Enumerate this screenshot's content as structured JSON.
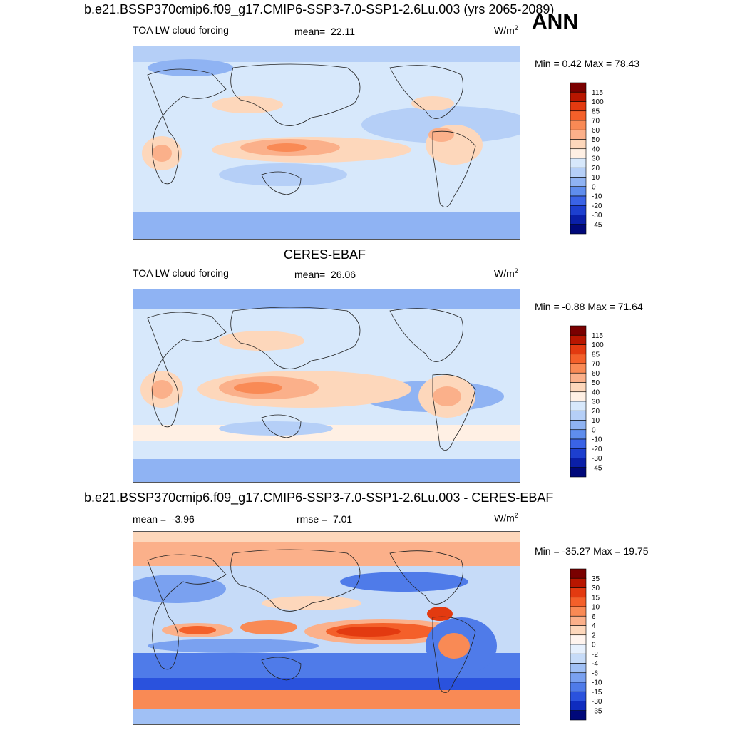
{
  "main_title": "b.e21.BSSP370cmip6.f09_g17.CMIP6-SSP3-7.0-SSP1-2.6Lu.003 (yrs 2065-2089)",
  "season": "ANN",
  "panels": [
    {
      "variable": "TOA LW cloud forcing",
      "stat_label": "mean=",
      "stat_value": "22.11",
      "units_base": "W/m",
      "units_exp": "2",
      "minmax": "Min =   0.42 Max =  78.43",
      "colorbar_labels": [
        "115",
        "100",
        "85",
        "70",
        "60",
        "50",
        "40",
        "30",
        "20",
        "10",
        "0",
        "-10",
        "-20",
        "-30",
        "-45"
      ]
    },
    {
      "subtitle": "CERES-EBAF",
      "variable": "TOA LW cloud forcing",
      "stat_label": "mean=",
      "stat_value": "26.06",
      "units_base": "W/m",
      "units_exp": "2",
      "minmax": "Min =  -0.88 Max =  71.64",
      "colorbar_labels": [
        "115",
        "100",
        "85",
        "70",
        "60",
        "50",
        "40",
        "30",
        "20",
        "10",
        "0",
        "-10",
        "-20",
        "-30",
        "-45"
      ]
    },
    {
      "subtitle": "b.e21.BSSP370cmip6.f09_g17.CMIP6-SSP3-7.0-SSP1-2.6Lu.003 - CERES-EBAF",
      "mean_label": "mean =",
      "mean_value": "-3.96",
      "rmse_label": "rmse =",
      "rmse_value": "7.01",
      "units_base": "W/m",
      "units_exp": "2",
      "minmax": "Min = -35.27 Max =  19.75",
      "colorbar_labels": [
        "35",
        "30",
        "15",
        "10",
        "6",
        "4",
        "2",
        "0",
        "-2",
        "-4",
        "-6",
        "-10",
        "-15",
        "-30",
        "-35"
      ]
    }
  ],
  "colors": {
    "abs_scale": [
      "#7a0000",
      "#b81600",
      "#e33a10",
      "#f4602a",
      "#f98a55",
      "#fbb08a",
      "#fdd7bb",
      "#fff0e4",
      "#d7e8fb",
      "#b5cff7",
      "#8fb3f3",
      "#5f8ded",
      "#3a63e6",
      "#1d3fcf",
      "#0a1fa8",
      "#00087a"
    ],
    "diff_scale": [
      "#7a0000",
      "#b81600",
      "#e33a10",
      "#f4602a",
      "#f98a55",
      "#fbb08a",
      "#fdd7bb",
      "#fff4ee",
      "#e6f0fd",
      "#c6dbf8",
      "#a0c0f5",
      "#7aa1f0",
      "#4f7be9",
      "#2a52dd",
      "#0f2cbf",
      "#00087a"
    ]
  }
}
